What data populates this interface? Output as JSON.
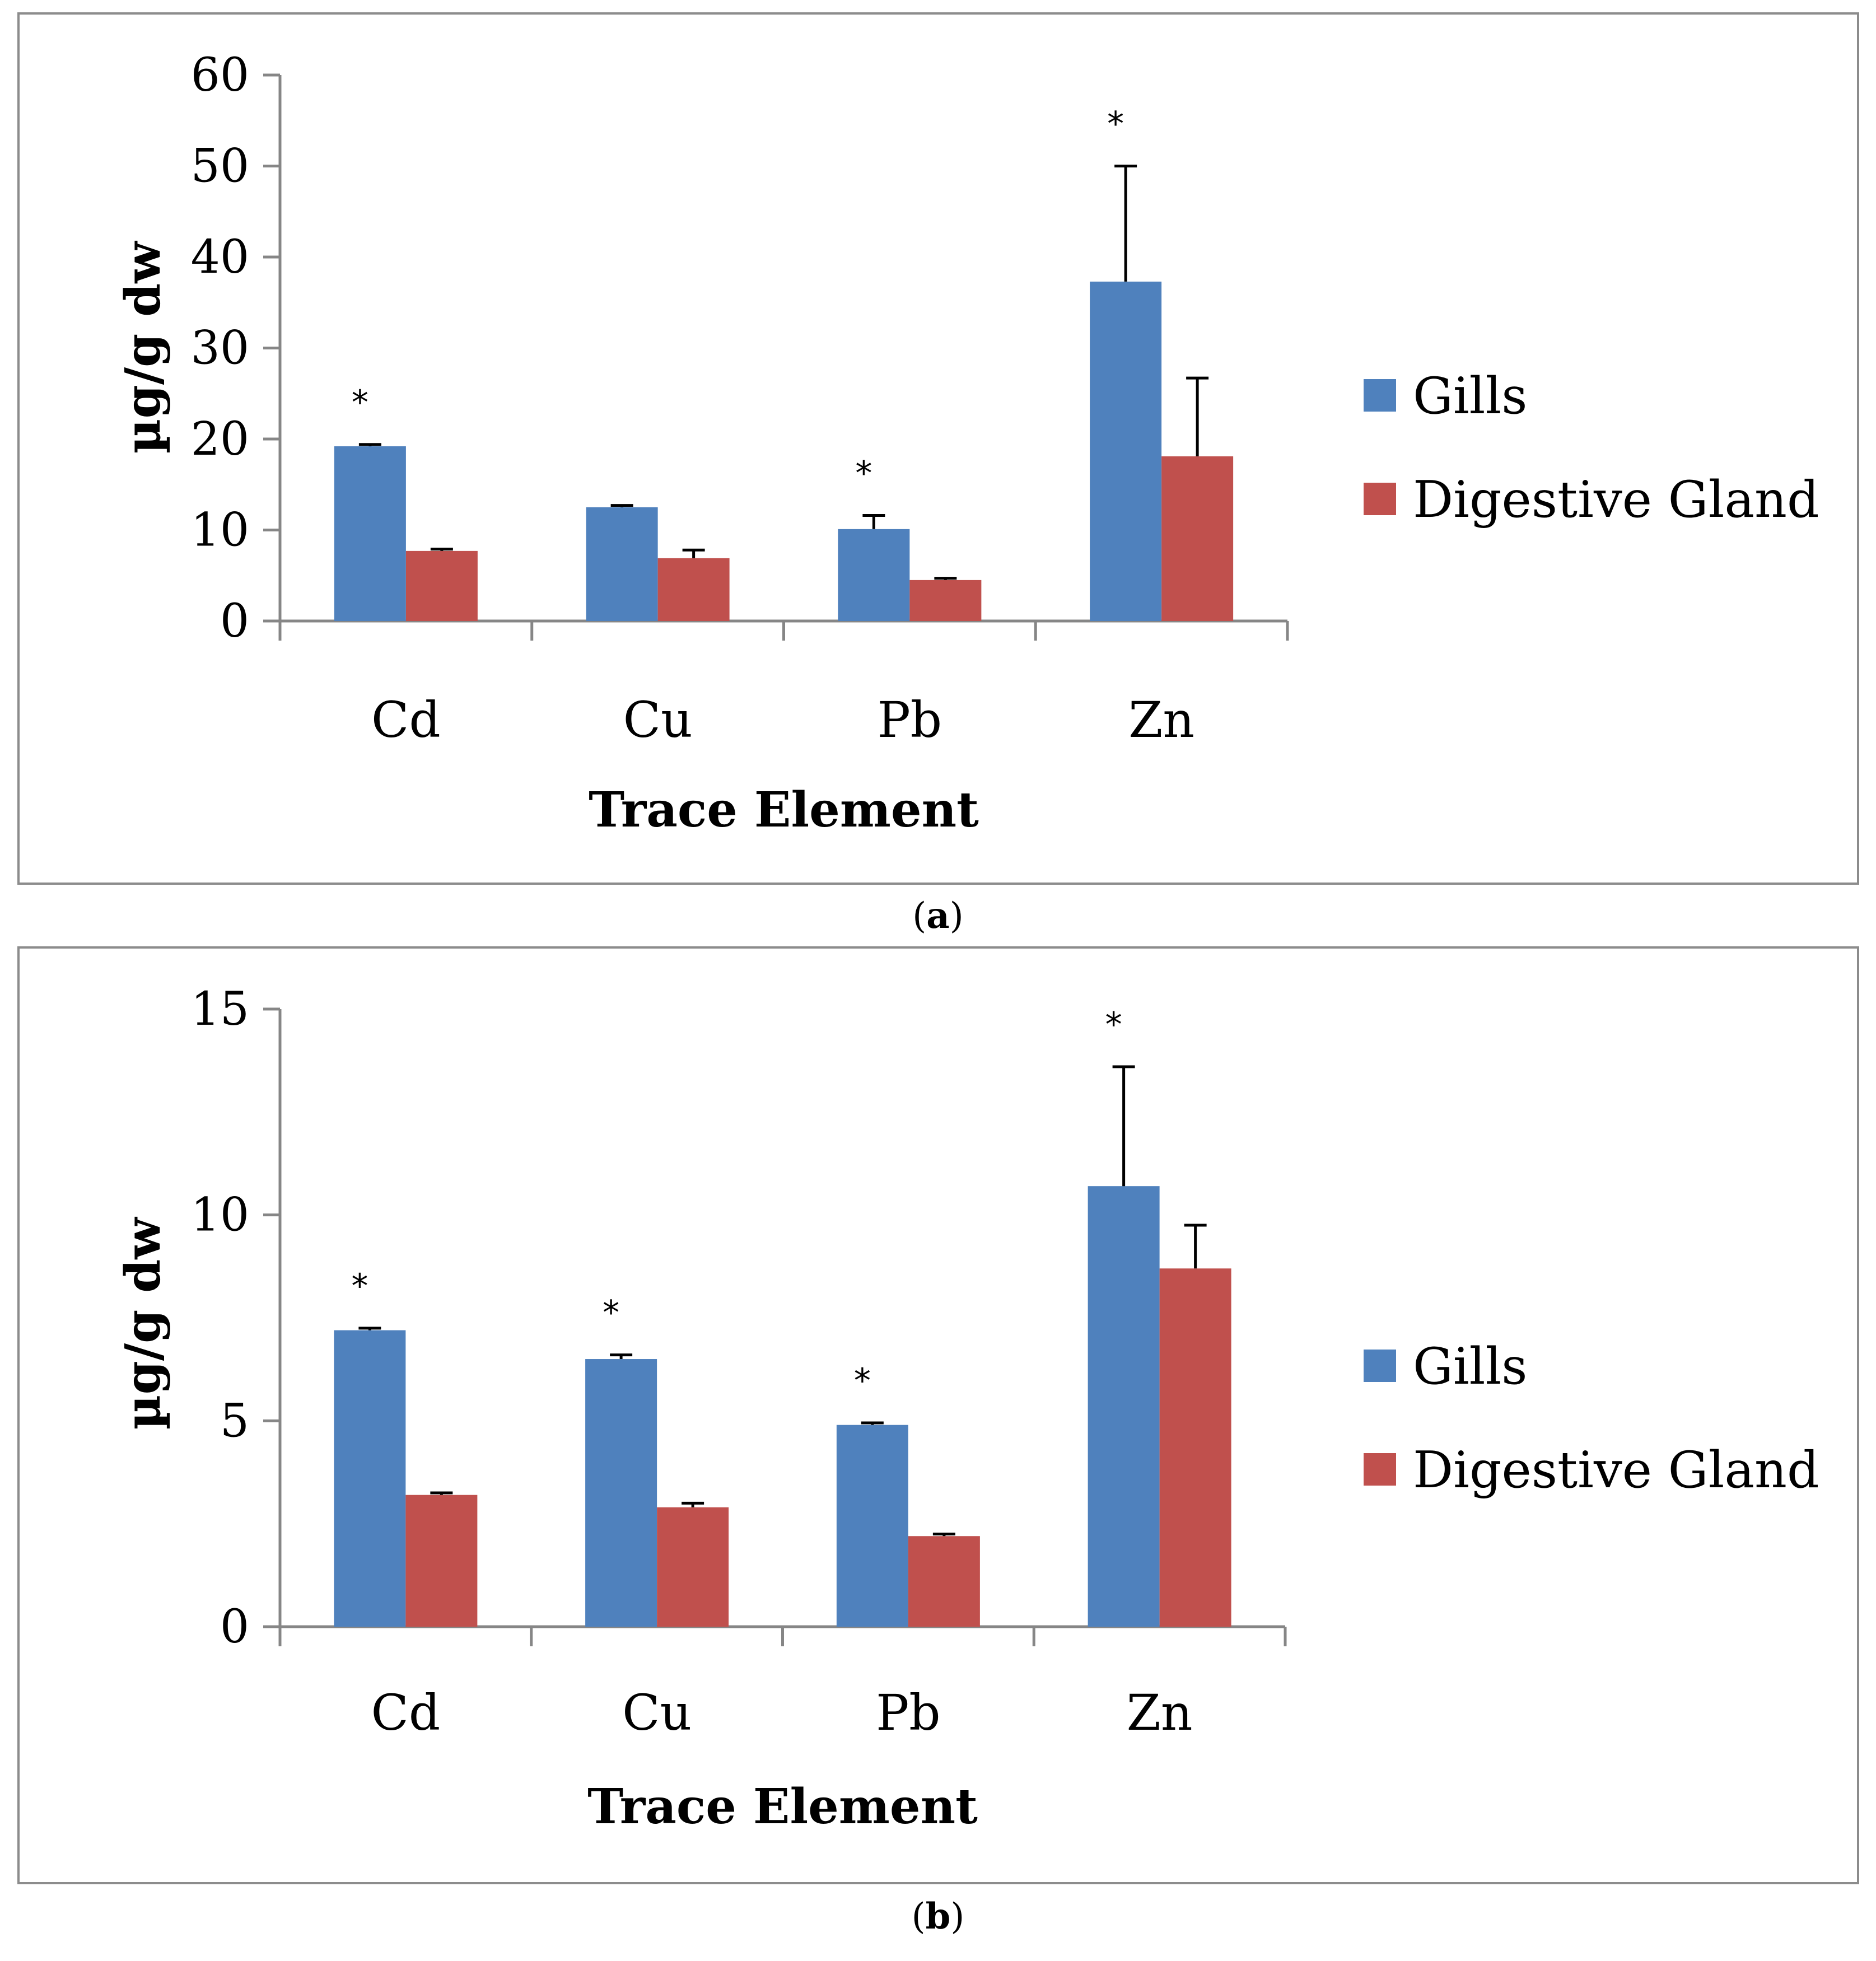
{
  "chart_data": [
    {
      "id": "a",
      "type": "bar",
      "caption_label": "a",
      "xlabel": "Trace Element",
      "ylabel": "µg/g dw",
      "ylim": [
        0,
        60
      ],
      "yticks": [
        0,
        10,
        20,
        30,
        40,
        50,
        60
      ],
      "categories": [
        "Cd",
        "Cu",
        "Pb",
        "Zn"
      ],
      "series": [
        {
          "name": "Gills",
          "color": "#4f81bd",
          "values": [
            19.2,
            12.5,
            10.1,
            37.3
          ],
          "errors": [
            0.2,
            0.2,
            1.5,
            12.7
          ],
          "significant": [
            true,
            false,
            true,
            true
          ]
        },
        {
          "name": "Digestive Gland",
          "color": "#c0504d",
          "values": [
            7.7,
            6.9,
            4.5,
            18.1
          ],
          "errors": [
            0.2,
            0.9,
            0.2,
            8.6
          ],
          "significant": [
            false,
            false,
            false,
            false
          ]
        }
      ],
      "annotation_symbol": "*",
      "legend_position": "right"
    },
    {
      "id": "b",
      "type": "bar",
      "caption_label": "b",
      "xlabel": "Trace Element",
      "ylabel": "µg/g dw",
      "ylim": [
        0,
        15
      ],
      "yticks": [
        0,
        5,
        10,
        15
      ],
      "categories": [
        "Cd",
        "Cu",
        "Pb",
        "Zn"
      ],
      "series": [
        {
          "name": "Gills",
          "color": "#4f81bd",
          "values": [
            7.2,
            6.5,
            4.9,
            10.7
          ],
          "errors": [
            0.05,
            0.1,
            0.05,
            2.9
          ],
          "significant": [
            true,
            true,
            true,
            true
          ]
        },
        {
          "name": "Digestive Gland",
          "color": "#c0504d",
          "values": [
            3.2,
            2.9,
            2.2,
            8.7
          ],
          "errors": [
            0.05,
            0.1,
            0.05,
            1.05
          ],
          "significant": [
            false,
            false,
            false,
            false
          ]
        }
      ],
      "annotation_symbol": "*",
      "legend_position": "right"
    }
  ]
}
